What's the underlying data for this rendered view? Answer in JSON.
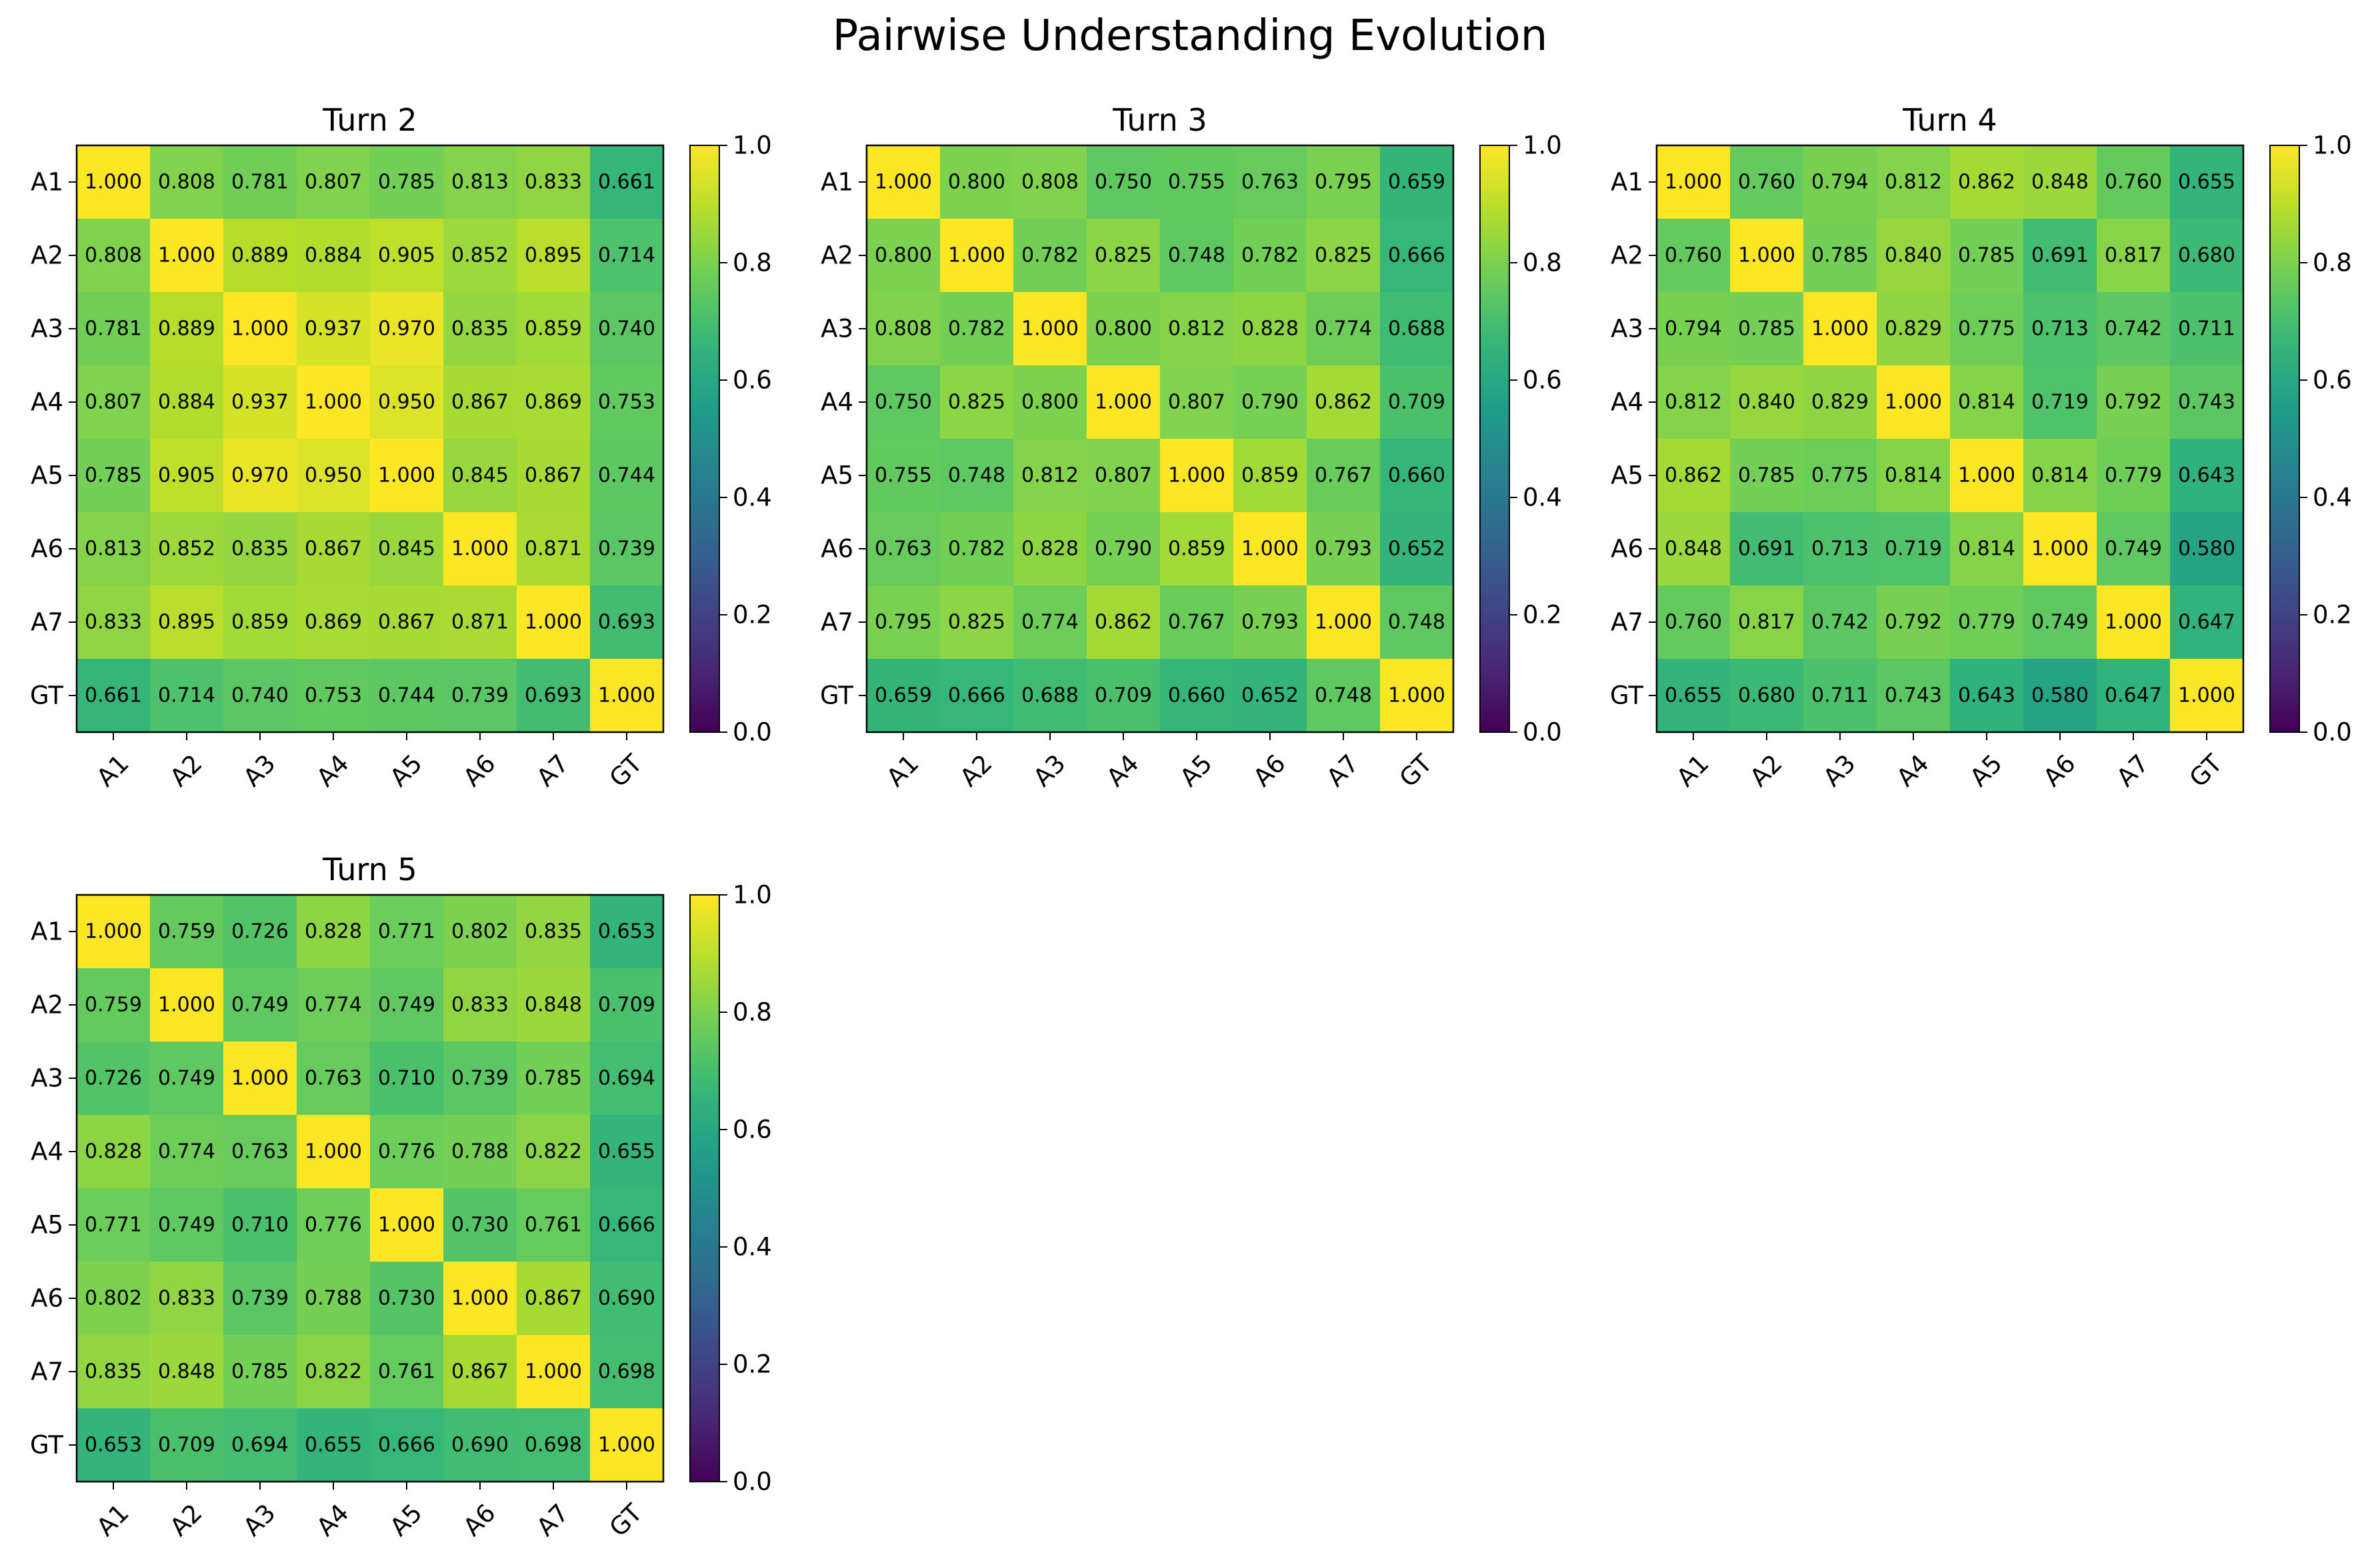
{
  "title": "Pairwise Understanding Evolution",
  "colormap": {
    "name": "viridis",
    "stops": [
      "#440154",
      "#482878",
      "#3e4989",
      "#31688e",
      "#26828e",
      "#1f9e89",
      "#35b779",
      "#6ece58",
      "#b5de2b",
      "#fde725"
    ]
  },
  "chart_data": [
    {
      "type": "heatmap",
      "title": "Turn 2",
      "x_labels": [
        "A1",
        "A2",
        "A3",
        "A4",
        "A5",
        "A6",
        "A7",
        "GT"
      ],
      "y_labels": [
        "A1",
        "A2",
        "A3",
        "A4",
        "A5",
        "A6",
        "A7",
        "GT"
      ],
      "vmin": 0.0,
      "vmax": 1.0,
      "colorbar_ticks": [
        "0.0",
        "0.2",
        "0.4",
        "0.6",
        "0.8",
        "1.0"
      ],
      "values": [
        [
          1.0,
          0.808,
          0.781,
          0.807,
          0.785,
          0.813,
          0.833,
          0.661
        ],
        [
          0.808,
          1.0,
          0.889,
          0.884,
          0.905,
          0.852,
          0.895,
          0.714
        ],
        [
          0.781,
          0.889,
          1.0,
          0.937,
          0.97,
          0.835,
          0.859,
          0.74
        ],
        [
          0.807,
          0.884,
          0.937,
          1.0,
          0.95,
          0.867,
          0.869,
          0.753
        ],
        [
          0.785,
          0.905,
          0.97,
          0.95,
          1.0,
          0.845,
          0.867,
          0.744
        ],
        [
          0.813,
          0.852,
          0.835,
          0.867,
          0.845,
          1.0,
          0.871,
          0.739
        ],
        [
          0.833,
          0.895,
          0.859,
          0.869,
          0.867,
          0.871,
          1.0,
          0.693
        ],
        [
          0.661,
          0.714,
          0.74,
          0.753,
          0.744,
          0.739,
          0.693,
          1.0
        ]
      ]
    },
    {
      "type": "heatmap",
      "title": "Turn 3",
      "x_labels": [
        "A1",
        "A2",
        "A3",
        "A4",
        "A5",
        "A6",
        "A7",
        "GT"
      ],
      "y_labels": [
        "A1",
        "A2",
        "A3",
        "A4",
        "A5",
        "A6",
        "A7",
        "GT"
      ],
      "vmin": 0.0,
      "vmax": 1.0,
      "colorbar_ticks": [
        "0.0",
        "0.2",
        "0.4",
        "0.6",
        "0.8",
        "1.0"
      ],
      "values": [
        [
          1.0,
          0.8,
          0.808,
          0.75,
          0.755,
          0.763,
          0.795,
          0.659
        ],
        [
          0.8,
          1.0,
          0.782,
          0.825,
          0.748,
          0.782,
          0.825,
          0.666
        ],
        [
          0.808,
          0.782,
          1.0,
          0.8,
          0.812,
          0.828,
          0.774,
          0.688
        ],
        [
          0.75,
          0.825,
          0.8,
          1.0,
          0.807,
          0.79,
          0.862,
          0.709
        ],
        [
          0.755,
          0.748,
          0.812,
          0.807,
          1.0,
          0.859,
          0.767,
          0.66
        ],
        [
          0.763,
          0.782,
          0.828,
          0.79,
          0.859,
          1.0,
          0.793,
          0.652
        ],
        [
          0.795,
          0.825,
          0.774,
          0.862,
          0.767,
          0.793,
          1.0,
          0.748
        ],
        [
          0.659,
          0.666,
          0.688,
          0.709,
          0.66,
          0.652,
          0.748,
          1.0
        ]
      ]
    },
    {
      "type": "heatmap",
      "title": "Turn 4",
      "x_labels": [
        "A1",
        "A2",
        "A3",
        "A4",
        "A5",
        "A6",
        "A7",
        "GT"
      ],
      "y_labels": [
        "A1",
        "A2",
        "A3",
        "A4",
        "A5",
        "A6",
        "A7",
        "GT"
      ],
      "vmin": 0.0,
      "vmax": 1.0,
      "colorbar_ticks": [
        "0.0",
        "0.2",
        "0.4",
        "0.6",
        "0.8",
        "1.0"
      ],
      "values": [
        [
          1.0,
          0.76,
          0.794,
          0.812,
          0.862,
          0.848,
          0.76,
          0.655
        ],
        [
          0.76,
          1.0,
          0.785,
          0.84,
          0.785,
          0.691,
          0.817,
          0.68
        ],
        [
          0.794,
          0.785,
          1.0,
          0.829,
          0.775,
          0.713,
          0.742,
          0.711
        ],
        [
          0.812,
          0.84,
          0.829,
          1.0,
          0.814,
          0.719,
          0.792,
          0.743
        ],
        [
          0.862,
          0.785,
          0.775,
          0.814,
          1.0,
          0.814,
          0.779,
          0.643
        ],
        [
          0.848,
          0.691,
          0.713,
          0.719,
          0.814,
          1.0,
          0.749,
          0.58
        ],
        [
          0.76,
          0.817,
          0.742,
          0.792,
          0.779,
          0.749,
          1.0,
          0.647
        ],
        [
          0.655,
          0.68,
          0.711,
          0.743,
          0.643,
          0.58,
          0.647,
          1.0
        ]
      ]
    },
    {
      "type": "heatmap",
      "title": "Turn 5",
      "x_labels": [
        "A1",
        "A2",
        "A3",
        "A4",
        "A5",
        "A6",
        "A7",
        "GT"
      ],
      "y_labels": [
        "A1",
        "A2",
        "A3",
        "A4",
        "A5",
        "A6",
        "A7",
        "GT"
      ],
      "vmin": 0.0,
      "vmax": 1.0,
      "colorbar_ticks": [
        "0.0",
        "0.2",
        "0.4",
        "0.6",
        "0.8",
        "1.0"
      ],
      "values": [
        [
          1.0,
          0.759,
          0.726,
          0.828,
          0.771,
          0.802,
          0.835,
          0.653
        ],
        [
          0.759,
          1.0,
          0.749,
          0.774,
          0.749,
          0.833,
          0.848,
          0.709
        ],
        [
          0.726,
          0.749,
          1.0,
          0.763,
          0.71,
          0.739,
          0.785,
          0.694
        ],
        [
          0.828,
          0.774,
          0.763,
          1.0,
          0.776,
          0.788,
          0.822,
          0.655
        ],
        [
          0.771,
          0.749,
          0.71,
          0.776,
          1.0,
          0.73,
          0.761,
          0.666
        ],
        [
          0.802,
          0.833,
          0.739,
          0.788,
          0.73,
          1.0,
          0.867,
          0.69
        ],
        [
          0.835,
          0.848,
          0.785,
          0.822,
          0.761,
          0.867,
          1.0,
          0.698
        ],
        [
          0.653,
          0.709,
          0.694,
          0.655,
          0.666,
          0.69,
          0.698,
          1.0
        ]
      ]
    }
  ]
}
